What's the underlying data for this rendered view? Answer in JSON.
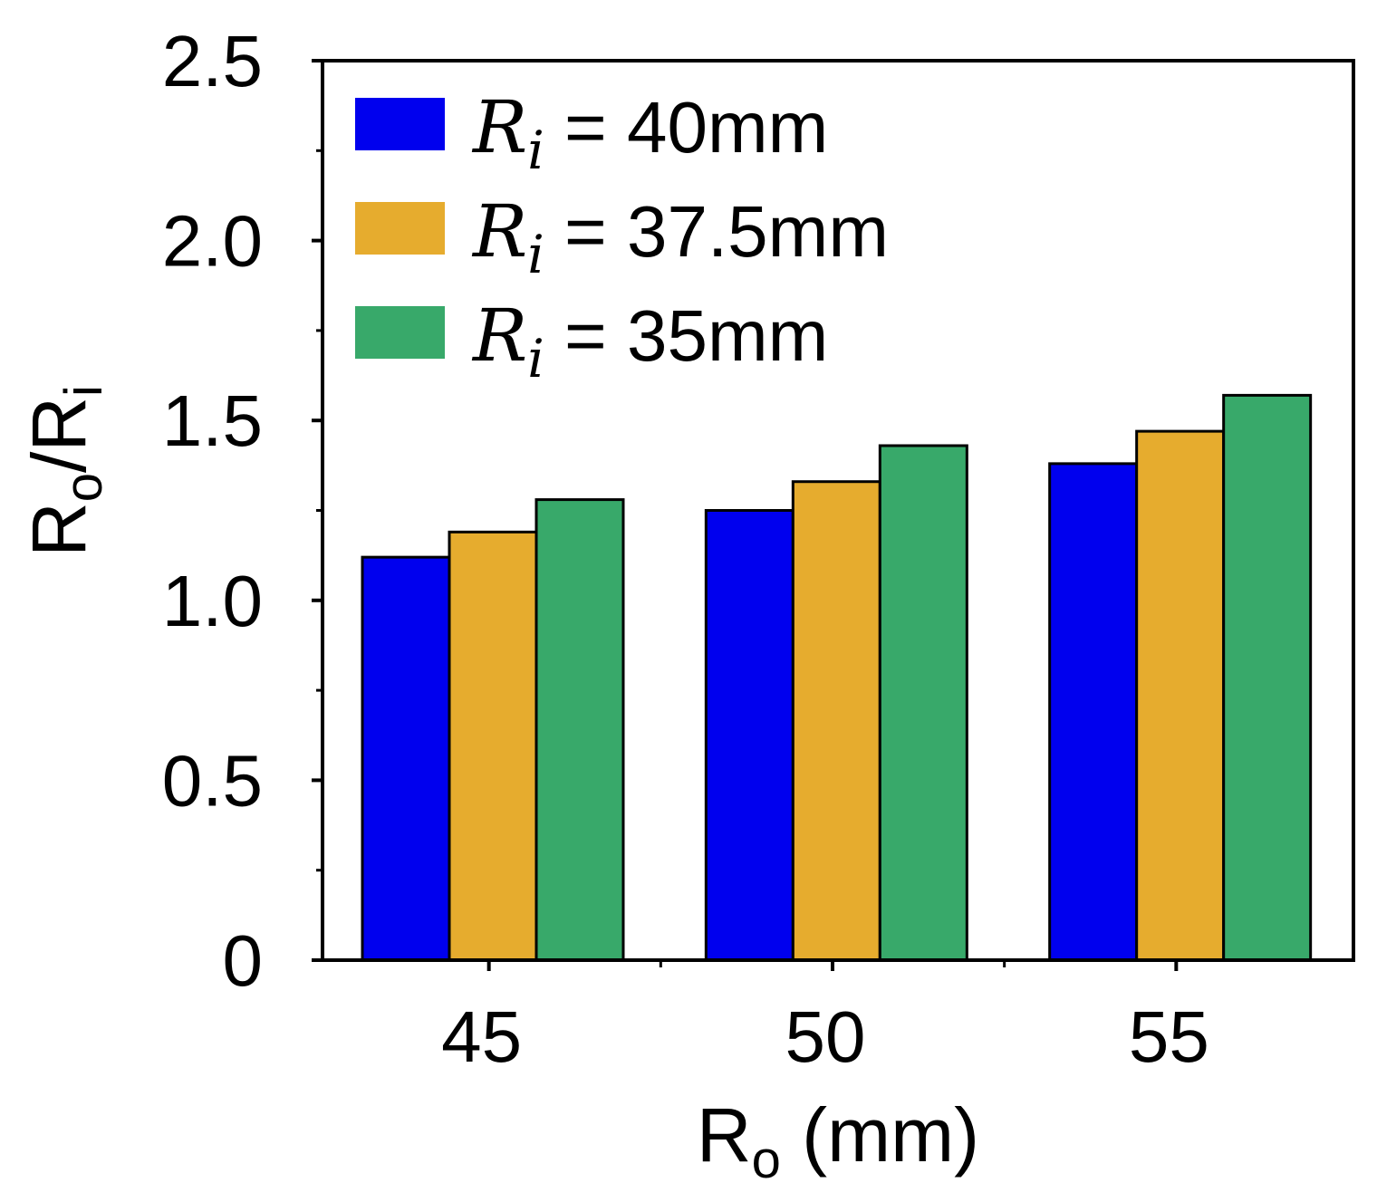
{
  "chart_data": {
    "type": "bar",
    "categories": [
      "45",
      "50",
      "55"
    ],
    "series": [
      {
        "name": "R_i = 40mm",
        "label": {
          "var": "R",
          "sub": "i",
          "rest": " = 40mm"
        },
        "color": "#0000ee",
        "values": [
          1.12,
          1.25,
          1.38
        ]
      },
      {
        "name": "R_i = 37.5mm",
        "label": {
          "var": "R",
          "sub": "i",
          "rest": " = 37.5mm"
        },
        "color": "#e6ac2e",
        "values": [
          1.19,
          1.33,
          1.47
        ]
      },
      {
        "name": "R_i = 35mm",
        "label": {
          "var": "R",
          "sub": "i",
          "rest": " = 35mm"
        },
        "color": "#38a96a",
        "values": [
          1.28,
          1.43,
          1.57
        ]
      }
    ],
    "xlabel": {
      "main": "R",
      "sub": "o",
      "rest": " (mm)"
    },
    "ylabel": {
      "main": "R",
      "sub1": "o",
      "mid": "/R",
      "sub2": "i"
    },
    "ylim": [
      0,
      2.5
    ],
    "yticks": [
      "0",
      "0.5",
      "1.0",
      "1.5",
      "2.0",
      "2.5"
    ],
    "ytick_values": [
      0,
      0.5,
      1.0,
      1.5,
      2.0,
      2.5
    ],
    "grid": false,
    "legend_position": "top-left"
  }
}
